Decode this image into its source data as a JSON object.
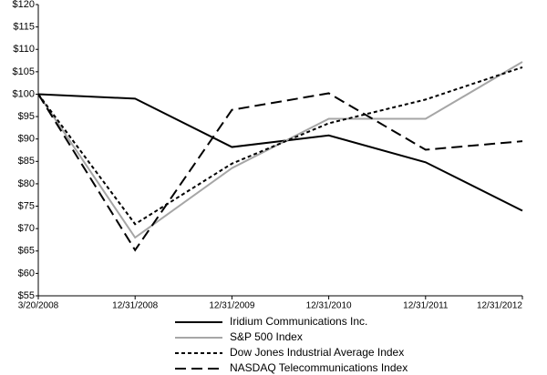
{
  "chart_data": {
    "type": "line",
    "categories": [
      "3/20/2008",
      "12/31/2008",
      "12/31/2009",
      "12/31/2010",
      "12/31/2011",
      "12/31/2012"
    ],
    "series": [
      {
        "name": "Iridium Communications Inc.",
        "color": "#000000",
        "line_style": "solid",
        "values": [
          100,
          99,
          88.2,
          90.8,
          84.8,
          74
        ]
      },
      {
        "name": "S&P 500 Index",
        "color": "#a6a6a6",
        "line_style": "solid",
        "values": [
          100,
          68,
          83.5,
          94.5,
          94.5,
          107.2
        ]
      },
      {
        "name": "Dow Jones Industrial Average Index",
        "color": "#000000",
        "line_style": "short-dash",
        "values": [
          100,
          71,
          84.5,
          93.5,
          98.8,
          106
        ]
      },
      {
        "name": "NASDAQ Telecommunications Index",
        "color": "#000000",
        "line_style": "long-dash",
        "values": [
          100,
          65.2,
          96.5,
          100.2,
          87.6,
          89.5
        ]
      }
    ],
    "ylim": [
      55,
      120
    ],
    "yticks": [
      {
        "value": 55,
        "label": "$55"
      },
      {
        "value": 60,
        "label": "$60"
      },
      {
        "value": 65,
        "label": "$65"
      },
      {
        "value": 70,
        "label": "$70"
      },
      {
        "value": 75,
        "label": "$75"
      },
      {
        "value": 80,
        "label": "$80"
      },
      {
        "value": 85,
        "label": "$85"
      },
      {
        "value": 90,
        "label": "$90"
      },
      {
        "value": 95,
        "label": "$95"
      },
      {
        "value": 100,
        "label": "$100"
      },
      {
        "value": 105,
        "label": "$105"
      },
      {
        "value": 110,
        "label": "$110"
      },
      {
        "value": 115,
        "label": "$115"
      },
      {
        "value": 120,
        "label": "$120"
      }
    ],
    "grid": false,
    "legend": "bottom"
  }
}
